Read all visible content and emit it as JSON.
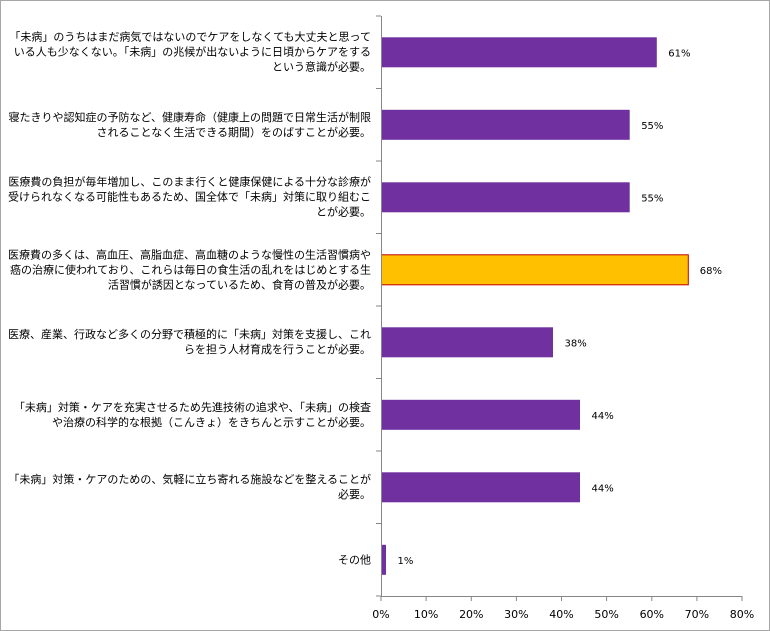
{
  "chart_data": {
    "type": "bar",
    "orientation": "horizontal",
    "categories": [
      "「未病」のうちはまだ病気ではないのでケアをしなくても大丈夫と思っている人も少なくない。「未病」の兆候が出ないように日頃からケアをするという意識が必要。",
      "寝たきりや認知症の予防など、健康寿命（健康上の問題で日常生活が制限されることなく生活できる期間）をのばすことが必要。",
      "医療費の負担が毎年増加し、このまま行くと健康保健による十分な診療が受けられなくなる可能性もあるため、国全体で「未病」対策に取り組むことが必要。",
      "医療費の多くは、高血圧、高脂血症、高血糖のような慢性の生活習慣病や癌の治療に使われており、これらは毎日の食生活の乱れをはじめとする生活習慣が誘因となっているため、食育の普及が必要。",
      "医療、産業、行政など多くの分野で積極的に「未病」対策を支援し、これらを担う人材育成を行うことが必要。",
      "「未病」対策・ケアを充実させるため先進技術の追求や、「未病」の検査や治療の科学的な根拠（こんきょ）をきちんと示すことが必要。",
      "「未病」対策・ケアのための、気軽に立ち寄れる施設などを整えることが必要。",
      "その他"
    ],
    "values": [
      61,
      55,
      55,
      68,
      38,
      44,
      44,
      1
    ],
    "data_labels": [
      "61%",
      "55%",
      "55%",
      "68%",
      "38%",
      "44%",
      "44%",
      "1%"
    ],
    "highlight_index": 3,
    "xlim": [
      0,
      80
    ],
    "xticks": [
      "0%",
      "10%",
      "20%",
      "30%",
      "40%",
      "50%",
      "60%",
      "70%",
      "80%"
    ],
    "grid": false,
    "colors": {
      "bar": "#7030a0",
      "highlight_bar": "#ffc000",
      "highlight_border": "#c00000",
      "axis": "#868686",
      "text": "#000000"
    }
  }
}
